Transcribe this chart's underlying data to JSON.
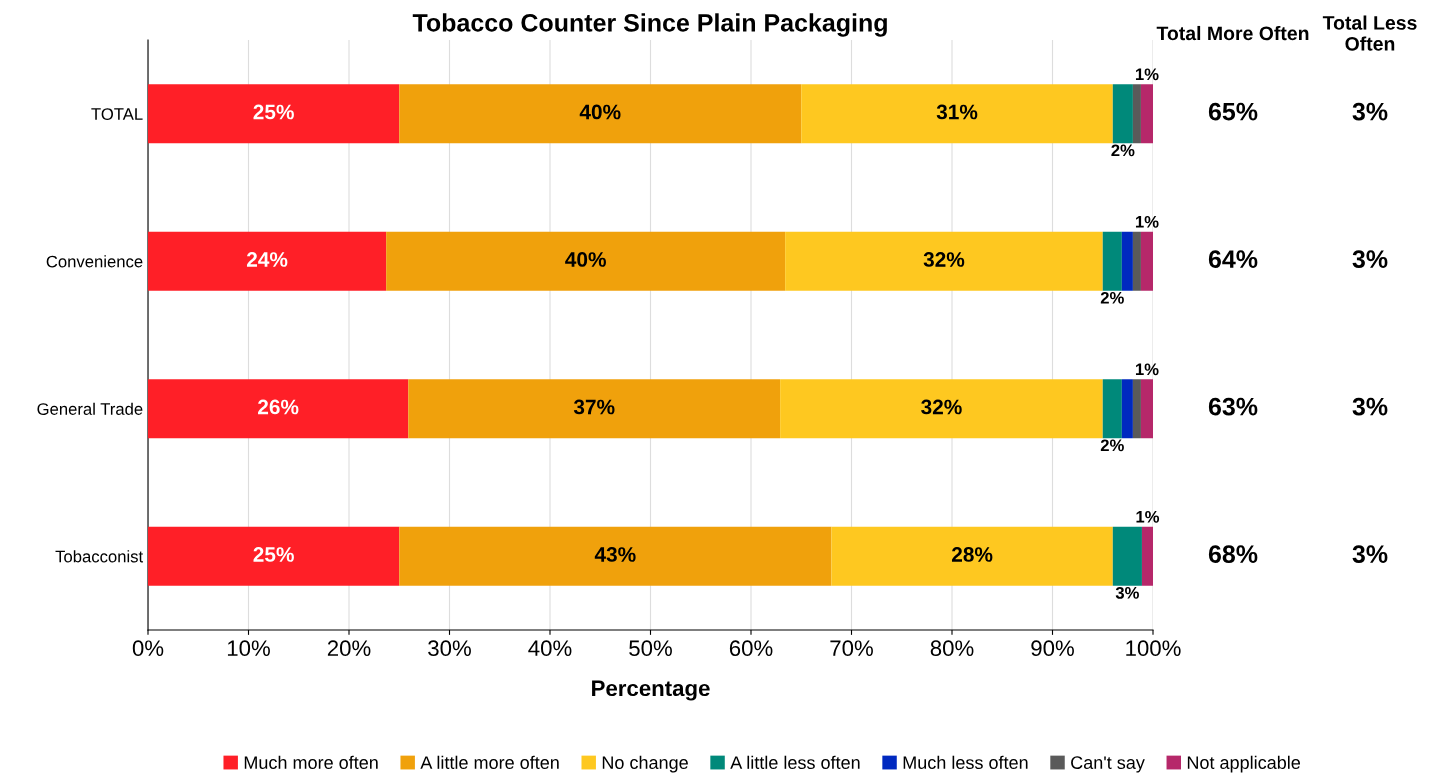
{
  "chart_data": {
    "type": "bar",
    "orientation": "horizontal",
    "stacked": true,
    "title": "Tobacco Counter Since Plain Packaging",
    "xlabel": "Percentage",
    "categories": [
      "TOTAL",
      "Convenience",
      "General Trade",
      "Tobacconist"
    ],
    "series": [
      {
        "name": "Much more often",
        "color": "#ff1f27",
        "values": [
          25,
          23.7,
          25.9,
          25
        ],
        "value_labels": [
          "25%",
          "24%",
          "26%",
          "25%"
        ]
      },
      {
        "name": "A little more often",
        "color": "#f0a10c",
        "values": [
          40,
          39.7,
          37,
          43
        ],
        "value_labels": [
          "40%",
          "40%",
          "37%",
          "43%"
        ]
      },
      {
        "name": "No change",
        "color": "#fec820",
        "values": [
          31,
          31.6,
          32.1,
          28
        ],
        "value_labels": [
          "31%",
          "32%",
          "32%",
          "28%"
        ]
      },
      {
        "name": "A little less often",
        "color": "#00897a",
        "values": [
          2.0,
          1.9,
          1.9,
          2.9
        ],
        "value_labels": [
          "2%",
          "2%",
          "2%",
          "3%"
        ]
      },
      {
        "name": "Much less often",
        "color": "#0029c0",
        "values": [
          0,
          1.1,
          1.1,
          0
        ],
        "value_labels": [
          null,
          null,
          null,
          null
        ]
      },
      {
        "name": "Can't say",
        "color": "#5a5a5a",
        "values": [
          0.8,
          0.8,
          0.8,
          0
        ],
        "value_labels": [
          null,
          null,
          null,
          null
        ]
      },
      {
        "name": "Not applicable",
        "color": "#b6286a",
        "values": [
          1.2,
          1.2,
          1.2,
          1.1
        ],
        "value_labels": [
          "1%",
          "1%",
          "1%",
          "1%"
        ]
      }
    ],
    "xlim": [
      0,
      100
    ],
    "xticks": [
      {
        "value": 0,
        "label": "0%"
      },
      {
        "value": 10,
        "label": "10%"
      },
      {
        "value": 20,
        "label": "20%"
      },
      {
        "value": 30,
        "label": "30%"
      },
      {
        "value": 40,
        "label": "40%"
      },
      {
        "value": 50,
        "label": "50%"
      },
      {
        "value": 60,
        "label": "60%"
      },
      {
        "value": 70,
        "label": "70%"
      },
      {
        "value": 80,
        "label": "80%"
      },
      {
        "value": 90,
        "label": "90%"
      },
      {
        "value": 100,
        "label": "100%"
      }
    ],
    "grid": "x",
    "legend": "bottom",
    "annotations": [
      "Total More Often",
      "65%",
      "64%",
      "63%",
      "68%",
      "Total Less Often",
      "3%",
      "3%",
      "3%",
      "3%"
    ]
  }
}
